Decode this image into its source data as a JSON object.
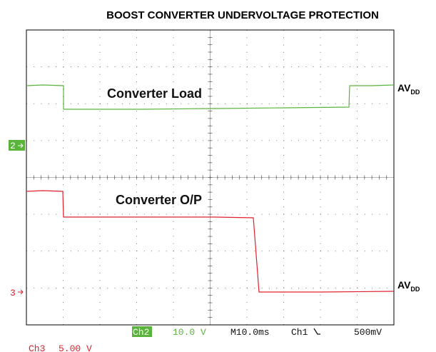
{
  "title": "BOOST CONVERTER UNDERVOLTAGE PROTECTION",
  "annotations": {
    "load": "Converter Load",
    "output": "Converter O/P"
  },
  "rail_labels": [
    {
      "main": "AV",
      "sub": "DD"
    },
    {
      "main": "AV",
      "sub": "DD"
    }
  ],
  "channel_markers": [
    "2",
    "3"
  ],
  "settings": {
    "ch2": "Ch2",
    "ch2_scale": "10.0 V",
    "timebase": "M10.0ms",
    "trigger": "Ch1",
    "trigger_level": "500mV",
    "ch3": "Ch3",
    "ch3_scale": "5.00 V"
  }
}
